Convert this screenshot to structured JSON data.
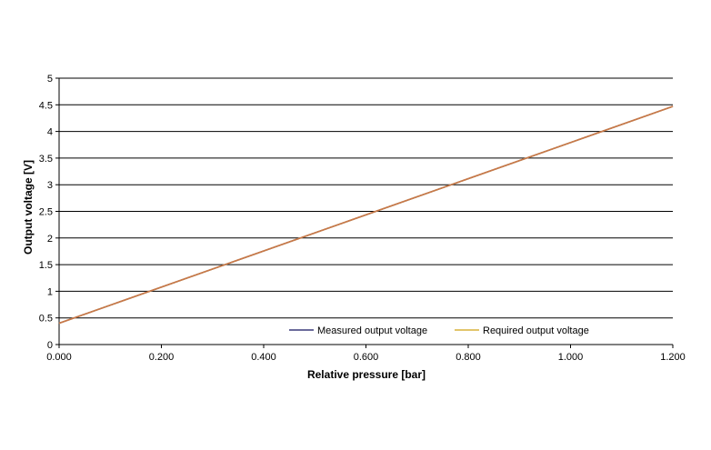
{
  "chart_data": {
    "type": "line",
    "title": "",
    "xlabel": "Relative pressure [bar]",
    "ylabel": "Output voltage [V]",
    "xlim": [
      0,
      1.2
    ],
    "ylim": [
      0,
      5
    ],
    "x_ticks": [
      "0.000",
      "0.200",
      "0.400",
      "0.600",
      "0.800",
      "1.000",
      "1.200"
    ],
    "y_ticks": [
      "0",
      "0.5",
      "1",
      "1.5",
      "2",
      "2.5",
      "3",
      "3.5",
      "4",
      "4.5",
      "5"
    ],
    "grid": "horizontal",
    "legend_position": "bottom-right",
    "series": [
      {
        "name": "Measured output voltage",
        "color": "#3a3a7a",
        "x": [
          0,
          1.2
        ],
        "y": [
          0.4,
          4.47
        ]
      },
      {
        "name": "Required output voltage",
        "color": "#d8b23a",
        "x": [
          0,
          1.2
        ],
        "y": [
          0.4,
          4.47
        ]
      }
    ],
    "overlay_color": "#c8784a"
  }
}
